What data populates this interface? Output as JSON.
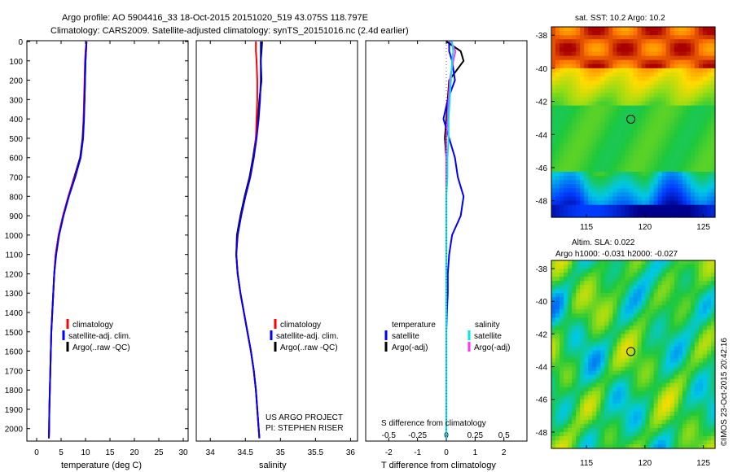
{
  "header": {
    "title_line1": "Argo profile: AO 5904416_33 18-Oct-2015 20151020_519 43.075S 118.797E",
    "title_line2": "Climatology: CARS2009. Satellite-adjusted climatology: synTS_20151016.nc (2.4d earlier)"
  },
  "colors": {
    "climatology": "#ff0000",
    "satellite": "#0000ff",
    "argo": "#000000",
    "sal_satellite": "#00e5ee",
    "sal_argo": "#ff33ff"
  },
  "depth_ticks": [
    "0",
    "100",
    "200",
    "300",
    "400",
    "500",
    "600",
    "700",
    "800",
    "900",
    "1000",
    "1100",
    "1200",
    "1300",
    "1400",
    "1500",
    "1600",
    "1700",
    "1800",
    "1900",
    "2000"
  ],
  "panel_temp": {
    "xlabel": "temperature (deg C)",
    "xticks": [
      "0",
      "5",
      "10",
      "15",
      "20",
      "25",
      "30"
    ],
    "legend": [
      "climatology",
      "satellite-adj. clim.",
      "Argo(..raw -QC)"
    ]
  },
  "panel_sal": {
    "xlabel": "salinity",
    "xticks": [
      "34",
      "34.5",
      "35",
      "35.5",
      "36"
    ],
    "legend": [
      "climatology",
      "satellite-adj. clim.",
      "Argo(..raw -QC)"
    ],
    "project": "US ARGO PROJECT",
    "pi": "PI: STEPHEN RISER"
  },
  "panel_diff": {
    "xlabel": "T difference from climatology",
    "xticks": [
      "-2",
      "-1",
      "0",
      "1",
      "2"
    ],
    "s_label": "S difference from climatology",
    "s_ticks": [
      "-0.5",
      "-0.25",
      "0",
      "0.25",
      "0.5"
    ],
    "legend_t_head": "temperature",
    "legend_s_head": "salinity",
    "legend_t": [
      "satellite",
      "Argo(-adj)"
    ],
    "legend_s": [
      "satellite",
      "Argo(-adj)"
    ]
  },
  "map_sst": {
    "title": "sat. SST: 10.2  Argo: 10.2",
    "yticks": [
      "-38",
      "-40",
      "-42",
      "-44",
      "-46",
      "-48"
    ],
    "xticks": [
      "115",
      "120",
      "125"
    ]
  },
  "map_sla": {
    "title1": "Altim. SLA: 0.022",
    "title2": "Argo h1000: -0.031 h2000: -0.027",
    "yticks": [
      "-38",
      "-40",
      "-42",
      "-44",
      "-46",
      "-48"
    ],
    "xticks": [
      "115",
      "120",
      "125"
    ]
  },
  "footer": {
    "credit": "©IMOS 23-Oct-2015 20:42:16"
  },
  "chart_data": {
    "type": "line",
    "profiles": {
      "depth": [
        0,
        50,
        100,
        200,
        300,
        400,
        500,
        600,
        700,
        800,
        900,
        1000,
        1100,
        1200,
        1300,
        1400,
        1500,
        1600,
        1700,
        1800,
        1900,
        2000,
        2050
      ],
      "temperature_climatology": [
        10.2,
        10.0,
        9.9,
        9.8,
        9.7,
        9.6,
        9.5,
        9.0,
        7.8,
        6.5,
        5.4,
        4.5,
        3.9,
        3.6,
        3.4,
        3.2,
        3.0,
        2.9,
        2.8,
        2.7,
        2.6,
        2.55,
        2.5
      ],
      "temperature_satellite": [
        10.2,
        10.1,
        10.0,
        9.9,
        9.8,
        9.7,
        9.5,
        9.0,
        7.9,
        6.6,
        5.5,
        4.6,
        4.0,
        3.6,
        3.4,
        3.2,
        3.0,
        2.9,
        2.8,
        2.7,
        2.6,
        2.55,
        2.5
      ],
      "temperature_argo": [
        10.2,
        10.1,
        10.0,
        9.9,
        9.8,
        9.6,
        9.4,
        8.9,
        7.7,
        6.5,
        5.4,
        4.5,
        3.9,
        3.6,
        3.4,
        3.2,
        3.0,
        2.9,
        2.8,
        2.7,
        2.6,
        2.55,
        2.5
      ],
      "salinity_climatology": [
        34.65,
        34.65,
        34.66,
        34.67,
        34.67,
        34.66,
        34.65,
        34.62,
        34.57,
        34.5,
        34.44,
        34.39,
        34.37,
        34.39,
        34.43,
        34.48,
        34.53,
        34.58,
        34.62,
        34.65,
        34.67,
        34.69,
        34.7
      ],
      "salinity_satellite": [
        34.72,
        34.72,
        34.72,
        34.72,
        34.71,
        34.69,
        34.66,
        34.62,
        34.57,
        34.5,
        34.44,
        34.39,
        34.37,
        34.39,
        34.43,
        34.48,
        34.53,
        34.58,
        34.62,
        34.65,
        34.67,
        34.69,
        34.7
      ],
      "salinity_argo": [
        34.74,
        34.73,
        34.72,
        34.73,
        34.7,
        34.68,
        34.65,
        34.61,
        34.56,
        34.49,
        34.43,
        34.38,
        34.37,
        34.39,
        34.43,
        34.48,
        34.53,
        34.58,
        34.62,
        34.65,
        34.67,
        34.69,
        34.7
      ],
      "temp_diff_satellite": [
        0.1,
        0.1,
        0.2,
        0.3,
        0.05,
        -0.1,
        0.1,
        0.3,
        0.4,
        0.6,
        0.5,
        0.2,
        0.1,
        0.05,
        0.05,
        0.02,
        0.0,
        0.0,
        0.0,
        0.0,
        0.0,
        0.0,
        0.0
      ],
      "temp_diff_argo": [
        0.0,
        0.5,
        0.6,
        0.1,
        0.05,
        0.0,
        -0.05,
        0.0,
        0.0,
        0.0,
        0.0,
        0.0,
        0.0,
        0.0,
        0.0,
        0.0,
        0.0,
        0.0,
        0.0,
        0.0,
        0.0,
        0.0,
        0.0
      ],
      "sal_diff_satellite": [
        0.05,
        0.06,
        0.05,
        0.04,
        0.03,
        0.02,
        0.02,
        0.01,
        0.01,
        0.0,
        0.0,
        0.0,
        0.0,
        0.0,
        0.0,
        0.0,
        0.0,
        0.0,
        0.0,
        0.0,
        0.0,
        0.0,
        0.0
      ],
      "sal_diff_argo": [
        0.04,
        0.08,
        0.06,
        0.03,
        0.02,
        0.01,
        0.0,
        0.0,
        0.0,
        0.0,
        0.0,
        0.0,
        0.0,
        0.0,
        0.0,
        0.0,
        0.0,
        0.0,
        0.0,
        0.0,
        0.0,
        0.0,
        0.0
      ]
    },
    "xlim_temp": [
      -2,
      31
    ],
    "xlim_sal": [
      33.8,
      36.1
    ],
    "xlim_tdiff": [
      -2.8,
      2.8
    ],
    "ylim_depth": [
      0,
      2060
    ],
    "sst_map": {
      "lon": [
        112,
        126
      ],
      "lat": [
        -49,
        -37.5
      ],
      "argo_position": [
        118.797,
        -43.075
      ]
    },
    "sla_map": {
      "lon": [
        112,
        126
      ],
      "lat": [
        -49,
        -37.5
      ],
      "argo_position": [
        118.797,
        -43.075
      ]
    }
  }
}
